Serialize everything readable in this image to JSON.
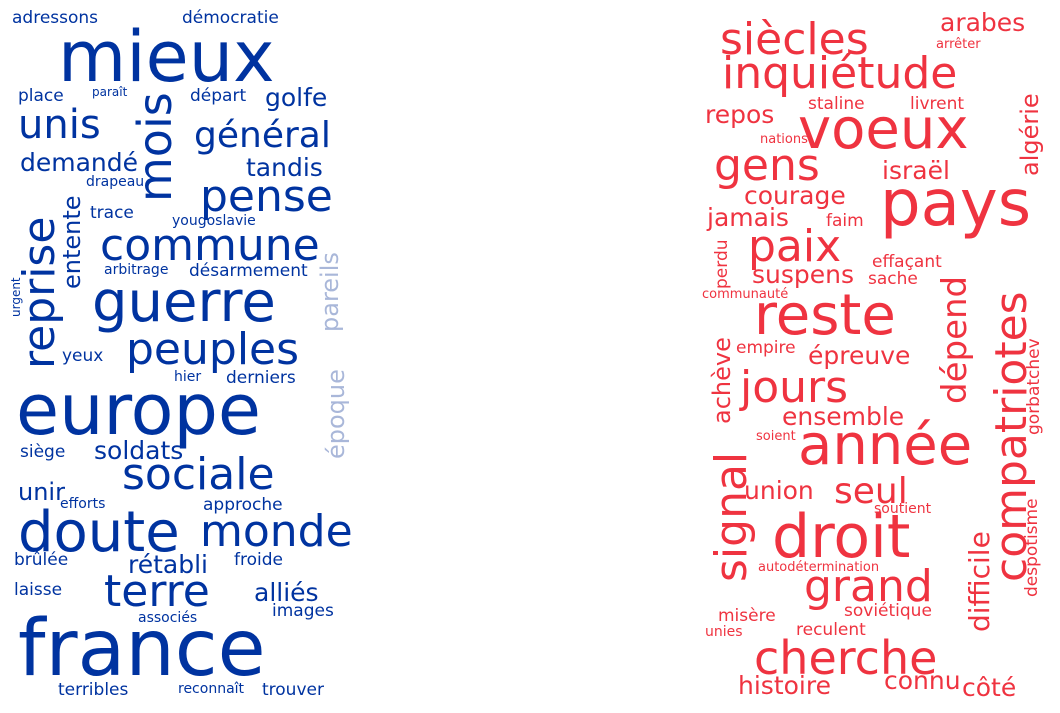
{
  "colors": {
    "blue": "#0033a0",
    "blue_light": "#a9b7d9",
    "red": "#ef3340",
    "red_light": "#f7a3a9"
  },
  "left_cloud": {
    "words": [
      "adressons",
      "démocratie",
      "mieux",
      "place",
      "paraît",
      "départ",
      "golfe",
      "unis",
      "mois",
      "général",
      "demandé",
      "tandis",
      "drapeau",
      "pense",
      "reprise",
      "trace",
      "entente",
      "yougoslavie",
      "commune",
      "pareils",
      "arbitrage",
      "désarmement",
      "urgent",
      "guerre",
      "peuples",
      "yeux",
      "hier",
      "derniers",
      "époque",
      "europe",
      "siège",
      "soldats",
      "sociale",
      "unir",
      "efforts",
      "approche",
      "doute",
      "monde",
      "brûlée",
      "rétabli",
      "froide",
      "laisse",
      "terre",
      "alliés",
      "associés",
      "images",
      "france",
      "terribles",
      "reconnaît",
      "trouver"
    ]
  },
  "right_cloud": {
    "words": [
      "siècles",
      "arabes",
      "arrêter",
      "inquiétude",
      "repos",
      "staline",
      "livrent",
      "voeux",
      "nations",
      "algérie",
      "gens",
      "israël",
      "pays",
      "courage",
      "jamais",
      "faim",
      "paix",
      "perdu",
      "effaçant",
      "suspens",
      "sache",
      "communauté",
      "reste",
      "compatriotes",
      "empire",
      "épreuve",
      "achève",
      "dépend",
      "jours",
      "gorbatchev",
      "ensemble",
      "soient",
      "signal",
      "année",
      "union",
      "seul",
      "soutient",
      "droit",
      "difficile",
      "autodétermination",
      "grand",
      "despotisme",
      "misère",
      "soviétique",
      "unies",
      "reculent",
      "cherche",
      "histoire",
      "connu",
      "côté"
    ]
  }
}
